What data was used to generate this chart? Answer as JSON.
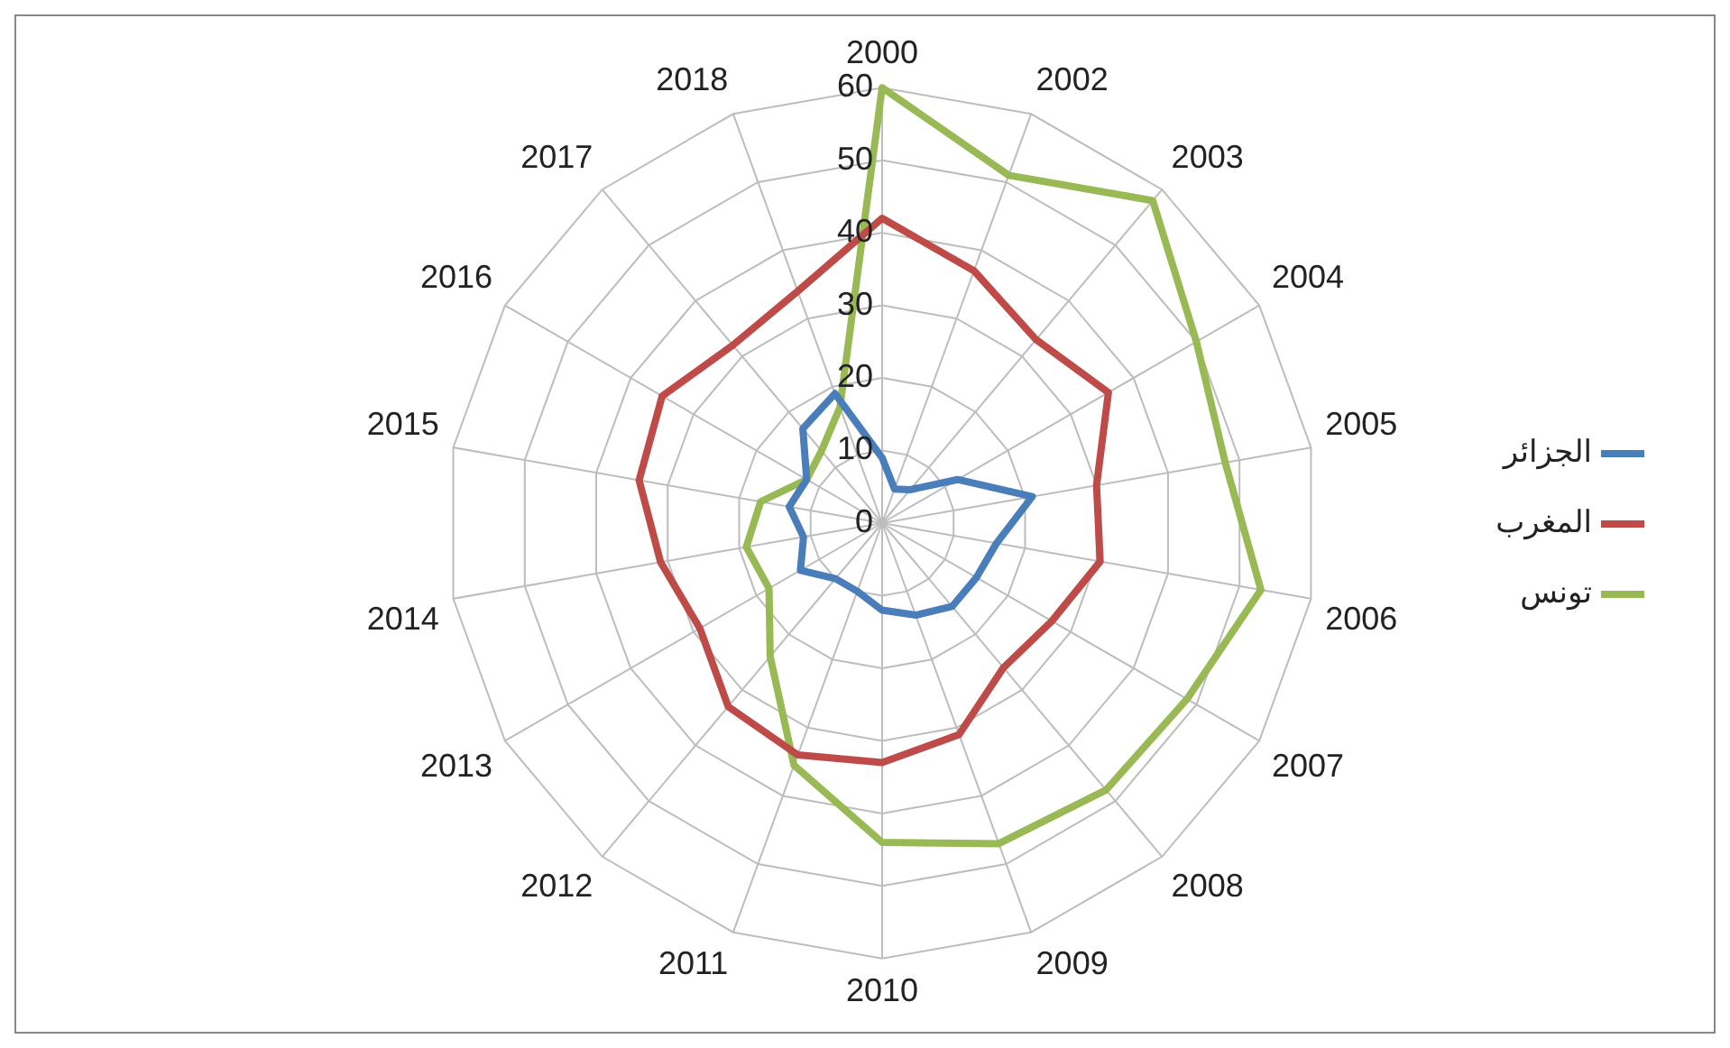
{
  "chart_data": {
    "type": "radar",
    "categories": [
      "2000",
      "2002",
      "2003",
      "2004",
      "2005",
      "2006",
      "2007",
      "2008",
      "2009",
      "2010",
      "2011",
      "2012",
      "2013",
      "2014",
      "2015",
      "2016",
      "2017",
      "2018"
    ],
    "series": [
      {
        "name": "الجزائر",
        "color": "#4a7ebb",
        "values": [
          9,
          5,
          6,
          12,
          21,
          16,
          15,
          15,
          13.5,
          12,
          10,
          10,
          13,
          11,
          13,
          12,
          17,
          19
        ]
      },
      {
        "name": "المغرب",
        "color": "#be4b48",
        "values": [
          42,
          37,
          33,
          36,
          30,
          30.5,
          27,
          26,
          31,
          33,
          34,
          33,
          29,
          31,
          34,
          35,
          32,
          34
        ]
      },
      {
        "name": "تونس",
        "color": "#98b954",
        "values": [
          60,
          51,
          58,
          50,
          48,
          53,
          48.5,
          48,
          47,
          44,
          35.5,
          24,
          18,
          19,
          17,
          12,
          13,
          17
        ]
      }
    ],
    "ylim": [
      0,
      60
    ],
    "yticks": [
      0,
      10,
      20,
      30,
      40,
      50,
      60
    ],
    "grid": true,
    "legend": "right",
    "marker": "none"
  }
}
